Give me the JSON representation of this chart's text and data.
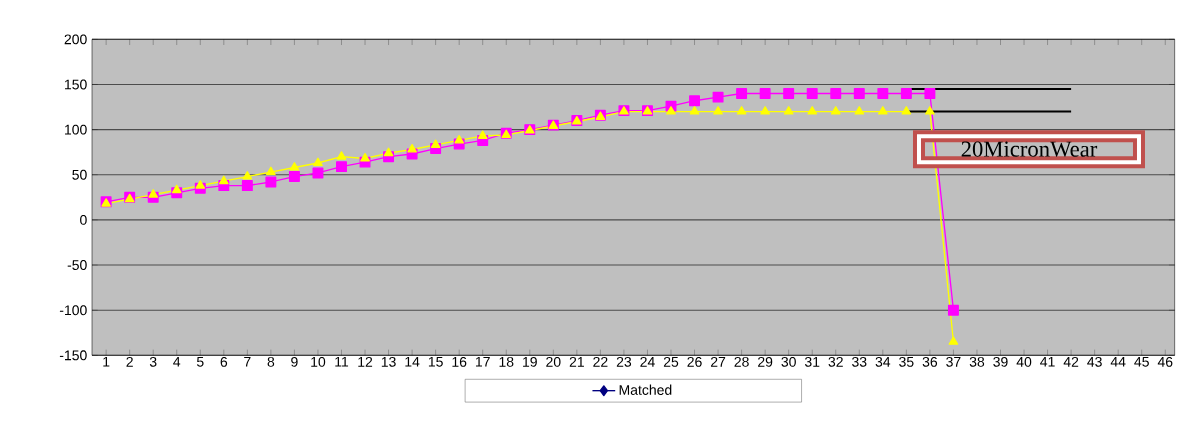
{
  "chart_data": {
    "type": "line",
    "categories": [
      "1",
      "2",
      "3",
      "4",
      "5",
      "6",
      "7",
      "8",
      "9",
      "10",
      "11",
      "12",
      "13",
      "14",
      "15",
      "16",
      "17",
      "18",
      "19",
      "20",
      "21",
      "22",
      "23",
      "24",
      "25",
      "26",
      "27",
      "28",
      "29",
      "30",
      "31",
      "32",
      "33",
      "34",
      "35",
      "36",
      "37",
      "38",
      "39",
      "40",
      "41",
      "42",
      "43",
      "44",
      "45",
      "46"
    ],
    "series": [
      {
        "color": "#ff00ff",
        "marker": "square",
        "values": [
          20,
          25,
          25,
          30,
          35,
          38,
          38,
          42,
          48,
          52,
          59,
          64,
          70,
          73,
          79,
          84,
          88,
          96,
          100,
          105,
          110,
          116,
          121,
          121,
          126,
          132,
          136,
          140,
          140,
          140,
          140,
          140,
          140,
          140,
          140,
          140,
          -100,
          null,
          null,
          null,
          null,
          null,
          null,
          null,
          null,
          null
        ]
      },
      {
        "color": "#ffff00",
        "marker": "triangle",
        "values": [
          18,
          23,
          28,
          33,
          38,
          43,
          48,
          53,
          58,
          63,
          70,
          68,
          74,
          78,
          83,
          88,
          93,
          94,
          99,
          104,
          109,
          114,
          120,
          120,
          120,
          120,
          120,
          120,
          120,
          120,
          120,
          120,
          120,
          120,
          120,
          120,
          -135,
          null,
          null,
          null,
          null,
          null,
          null,
          null,
          null,
          null
        ]
      },
      {
        "color": "#000000",
        "marker": "none",
        "values": [
          null,
          null,
          null,
          null,
          null,
          null,
          null,
          null,
          null,
          null,
          null,
          null,
          null,
          null,
          null,
          null,
          null,
          null,
          null,
          null,
          null,
          null,
          null,
          null,
          null,
          null,
          null,
          null,
          null,
          null,
          null,
          null,
          null,
          null,
          145,
          145,
          145,
          145,
          145,
          145,
          145,
          145,
          null,
          null,
          null,
          null
        ]
      },
      {
        "color": "#000000",
        "marker": "none",
        "values": [
          null,
          null,
          null,
          null,
          null,
          null,
          null,
          null,
          null,
          null,
          null,
          null,
          null,
          null,
          null,
          null,
          null,
          null,
          null,
          null,
          null,
          null,
          null,
          null,
          null,
          null,
          null,
          null,
          null,
          null,
          null,
          null,
          null,
          null,
          120,
          120,
          120,
          120,
          120,
          120,
          120,
          120,
          null,
          null,
          null,
          null
        ]
      },
      {
        "name": "Matched",
        "color": "#000080",
        "marker": "diamond",
        "values": [
          null,
          null,
          null,
          null,
          null,
          null,
          null,
          null,
          null,
          null,
          null,
          null,
          null,
          null,
          null,
          null,
          null,
          null,
          null,
          null,
          null,
          null,
          null,
          null,
          null,
          null,
          null,
          null,
          null,
          null,
          null,
          null,
          null,
          null,
          null,
          null,
          null,
          null,
          null,
          null,
          null,
          null,
          null,
          null,
          null,
          null
        ]
      }
    ],
    "ylim": [
      -150,
      200
    ],
    "yticks": [
      -150,
      -100,
      -50,
      0,
      50,
      100,
      150,
      200
    ],
    "grid": "y",
    "legend": "bottom",
    "annotations": [
      "20MicronWear"
    ]
  }
}
